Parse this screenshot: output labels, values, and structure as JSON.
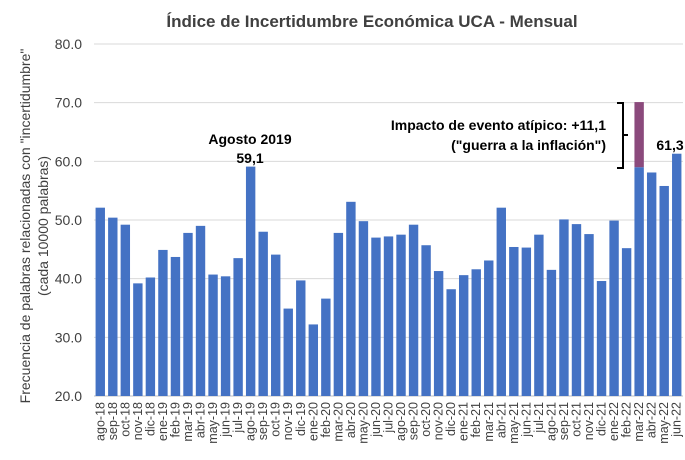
{
  "chart_data": {
    "type": "bar",
    "title": "Índice de Incertidumbre Económica UCA - Mensual",
    "ylabel_line1": "Frecuencia de palabras relacionadas con \"incertidumbre\"",
    "ylabel_line2": "(cada 10000 palabras)",
    "xlabel": "",
    "ylim": [
      20,
      80
    ],
    "yticks": [
      "20.0",
      "30.0",
      "40.0",
      "50.0",
      "60.0",
      "70.0",
      "80.0"
    ],
    "grid": true,
    "categories": [
      "ago-18",
      "sep-18",
      "oct-18",
      "nov-18",
      "dic-18",
      "ene-19",
      "feb-19",
      "mar-19",
      "abr-19",
      "may-19",
      "jun-19",
      "jul-19",
      "ago-19",
      "sep-19",
      "oct-19",
      "nov-19",
      "dic-19",
      "ene-20",
      "feb-20",
      "mar-20",
      "abr-20",
      "may-20",
      "jun-20",
      "jul-20",
      "ago-20",
      "sep-20",
      "oct-20",
      "nov-20",
      "dic-20",
      "ene-21",
      "feb-21",
      "mar-21",
      "abr-21",
      "may-21",
      "jun-21",
      "jul-21",
      "ago-21",
      "sep-21",
      "oct-21",
      "nov-21",
      "dic-21",
      "ene-22",
      "feb-22",
      "mar-22",
      "abr-22",
      "may-22",
      "jun-22"
    ],
    "values": [
      52.1,
      50.4,
      49.2,
      39.2,
      40.2,
      44.9,
      43.7,
      47.8,
      49.0,
      40.7,
      40.4,
      43.5,
      59.1,
      48.0,
      44.1,
      34.9,
      39.7,
      32.2,
      36.6,
      47.8,
      53.1,
      49.8,
      47.0,
      47.2,
      47.5,
      49.2,
      45.7,
      41.3,
      38.2,
      40.6,
      41.6,
      43.1,
      52.1,
      45.4,
      45.3,
      47.5,
      41.5,
      50.1,
      49.3,
      47.6,
      39.6,
      49.9,
      45.2,
      59.0,
      58.1,
      55.8,
      61.3
    ],
    "atypical": {
      "category": "mar-22",
      "extra": 11.1
    },
    "colors": {
      "bar": "#4472C4",
      "atypical": "#8B4A7C",
      "grid": "#D9D9D9"
    },
    "annotations": {
      "peak_label": "Agosto 2019",
      "peak_value": "59,1",
      "atypical_line1": "Impacto de evento atípico: +11,1",
      "atypical_line2": "(\"guerra a la inflación\")",
      "last_value": "61,3"
    }
  }
}
